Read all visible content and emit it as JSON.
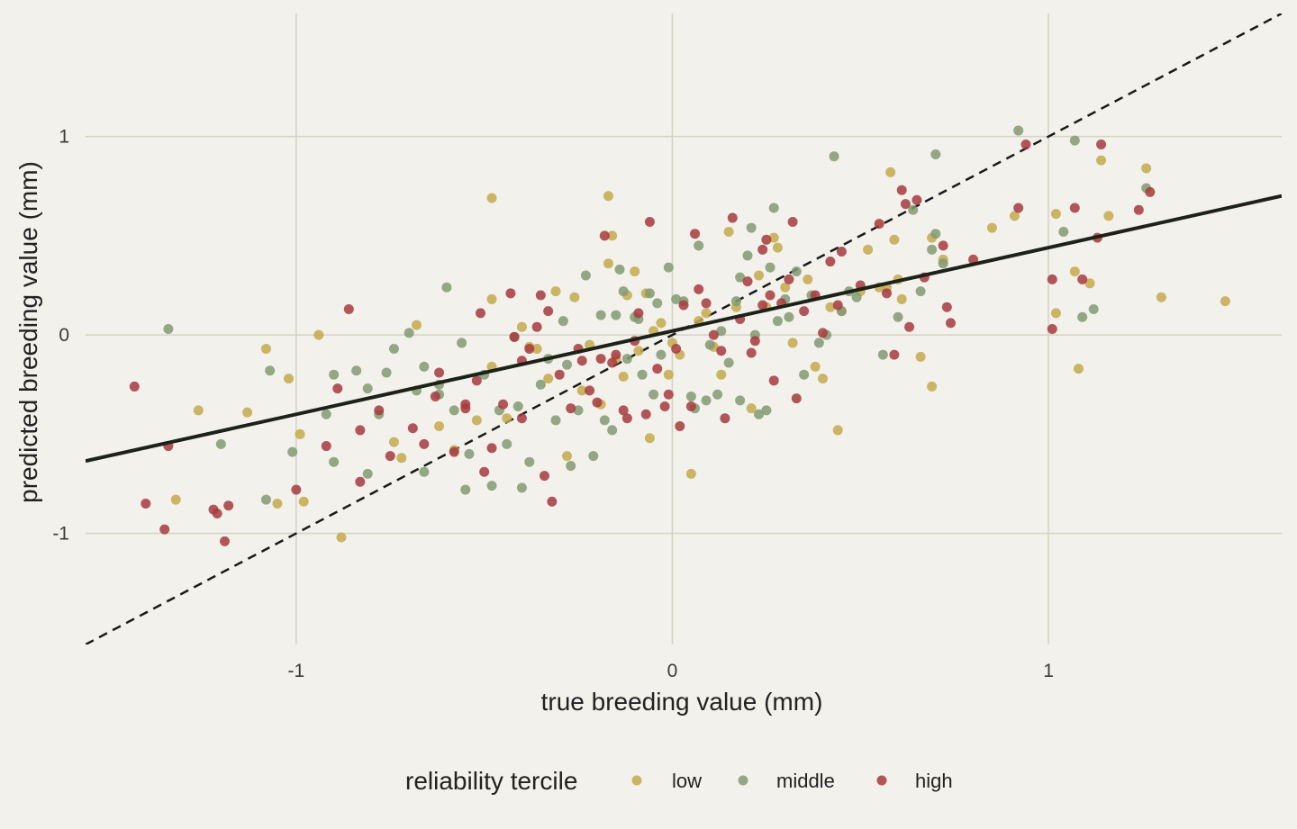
{
  "chart_data": {
    "type": "scatter",
    "xlabel": "true breeding value (mm)",
    "ylabel": "predicted breeding value (mm)",
    "xlim": [
      -1.56,
      1.62
    ],
    "ylim": [
      -1.56,
      1.62
    ],
    "x_ticks": [
      -1,
      0,
      1
    ],
    "y_ticks": [
      -1,
      0,
      1
    ],
    "x_tick_labels": [
      "-1",
      "0",
      "1"
    ],
    "y_tick_labels": [
      "-1",
      "0",
      "1"
    ],
    "grid": true,
    "legend": {
      "title": "reliability tercile",
      "position": "bottom",
      "entries": [
        {
          "label": "low",
          "color": "#c4a94c"
        },
        {
          "label": "middle",
          "color": "#839a72"
        },
        {
          "label": "high",
          "color": "#a73a3e"
        }
      ]
    },
    "reference_lines": [
      {
        "name": "",
        "kind": "identity",
        "style": "dashed",
        "color": "#1a1a1a",
        "slope": 1,
        "intercept": 0
      },
      {
        "name": "",
        "kind": "regression",
        "style": "solid",
        "color": "#1c2218",
        "slope": 0.42,
        "intercept": 0.02
      }
    ],
    "series": [
      {
        "name": "low",
        "color": "#c4a94c",
        "points": [
          [
            -1.26,
            -0.38
          ],
          [
            -1.13,
            -0.39
          ],
          [
            -1.08,
            -0.07
          ],
          [
            -1.02,
            -0.22
          ],
          [
            -0.99,
            -0.5
          ],
          [
            -1.05,
            -0.85
          ],
          [
            -0.98,
            -0.84
          ],
          [
            -0.88,
            -1.02
          ],
          [
            -0.94,
            0.0
          ],
          [
            -0.74,
            -0.54
          ],
          [
            -0.72,
            -0.62
          ],
          [
            -0.68,
            0.05
          ],
          [
            -0.62,
            -0.46
          ],
          [
            -0.58,
            -0.58
          ],
          [
            -0.52,
            -0.43
          ],
          [
            -0.48,
            0.18
          ],
          [
            -0.48,
            -0.16
          ],
          [
            -0.44,
            -0.42
          ],
          [
            -0.4,
            0.04
          ],
          [
            -0.38,
            -0.06
          ],
          [
            -0.36,
            -0.07
          ],
          [
            -0.33,
            -0.22
          ],
          [
            -0.31,
            0.22
          ],
          [
            -0.28,
            -0.61
          ],
          [
            -0.26,
            0.19
          ],
          [
            -0.24,
            -0.28
          ],
          [
            -0.22,
            -0.05
          ],
          [
            -0.19,
            -0.35
          ],
          [
            -0.17,
            0.36
          ],
          [
            -0.16,
            0.5
          ],
          [
            -0.15,
            -0.12
          ],
          [
            -0.13,
            -0.21
          ],
          [
            -0.12,
            0.2
          ],
          [
            -0.1,
            0.32
          ],
          [
            -0.09,
            -0.08
          ],
          [
            -0.07,
            0.21
          ],
          [
            -0.06,
            -0.52
          ],
          [
            -0.05,
            0.02
          ],
          [
            -0.03,
            0.06
          ],
          [
            -0.01,
            -0.2
          ],
          [
            0.0,
            -0.04
          ],
          [
            0.02,
            -0.1
          ],
          [
            0.05,
            -0.7
          ],
          [
            0.07,
            0.07
          ],
          [
            0.09,
            0.11
          ],
          [
            0.11,
            -0.06
          ],
          [
            0.13,
            -0.2
          ],
          [
            0.15,
            0.52
          ],
          [
            0.17,
            0.14
          ],
          [
            0.21,
            -0.37
          ],
          [
            0.23,
            0.3
          ],
          [
            0.25,
            0.14
          ],
          [
            0.27,
            0.49
          ],
          [
            0.28,
            0.44
          ],
          [
            0.3,
            0.24
          ],
          [
            0.32,
            -0.04
          ],
          [
            0.36,
            0.28
          ],
          [
            0.38,
            -0.16
          ],
          [
            0.4,
            -0.22
          ],
          [
            0.42,
            0.14
          ],
          [
            0.44,
            -0.48
          ],
          [
            0.45,
            0.12
          ],
          [
            0.5,
            0.22
          ],
          [
            0.52,
            0.43
          ],
          [
            0.55,
            0.24
          ],
          [
            0.57,
            0.24
          ],
          [
            0.59,
            0.48
          ],
          [
            0.6,
            0.28
          ],
          [
            0.61,
            0.18
          ],
          [
            0.66,
            -0.11
          ],
          [
            0.69,
            -0.26
          ],
          [
            0.69,
            0.49
          ],
          [
            0.72,
            0.38
          ],
          [
            0.85,
            0.54
          ],
          [
            0.91,
            0.6
          ],
          [
            1.02,
            0.61
          ],
          [
            1.02,
            0.11
          ],
          [
            1.07,
            0.32
          ],
          [
            1.08,
            -0.17
          ],
          [
            1.11,
            0.26
          ],
          [
            1.14,
            0.88
          ],
          [
            1.16,
            0.6
          ],
          [
            1.26,
            0.84
          ],
          [
            1.3,
            0.19
          ],
          [
            1.47,
            0.17
          ],
          [
            -0.48,
            0.69
          ],
          [
            -0.17,
            0.7
          ],
          [
            0.58,
            0.82
          ],
          [
            -1.32,
            -0.83
          ]
        ]
      },
      {
        "name": "middle",
        "color": "#839a72",
        "points": [
          [
            -1.34,
            0.03
          ],
          [
            -1.2,
            -0.55
          ],
          [
            -1.07,
            -0.18
          ],
          [
            -1.08,
            -0.83
          ],
          [
            -1.01,
            -0.59
          ],
          [
            -0.92,
            -0.4
          ],
          [
            -0.9,
            -0.2
          ],
          [
            -0.9,
            -0.64
          ],
          [
            -0.84,
            -0.18
          ],
          [
            -0.81,
            -0.27
          ],
          [
            -0.81,
            -0.7
          ],
          [
            -0.78,
            -0.4
          ],
          [
            -0.76,
            -0.19
          ],
          [
            -0.74,
            -0.07
          ],
          [
            -0.7,
            0.01
          ],
          [
            -0.68,
            -0.28
          ],
          [
            -0.66,
            -0.69
          ],
          [
            -0.62,
            -0.25
          ],
          [
            -0.62,
            -0.3
          ],
          [
            -0.6,
            0.24
          ],
          [
            -0.58,
            -0.38
          ],
          [
            -0.56,
            -0.04
          ],
          [
            -0.55,
            -0.78
          ],
          [
            -0.54,
            -0.6
          ],
          [
            -0.5,
            -0.2
          ],
          [
            -0.48,
            -0.76
          ],
          [
            -0.46,
            -0.38
          ],
          [
            -0.44,
            -0.55
          ],
          [
            -0.42,
            -0.01
          ],
          [
            -0.4,
            -0.77
          ],
          [
            -0.38,
            -0.64
          ],
          [
            -0.35,
            -0.25
          ],
          [
            -0.33,
            -0.12
          ],
          [
            -0.31,
            -0.43
          ],
          [
            -0.28,
            -0.15
          ],
          [
            -0.27,
            -0.66
          ],
          [
            -0.25,
            -0.38
          ],
          [
            -0.23,
            0.3
          ],
          [
            -0.21,
            -0.61
          ],
          [
            -0.19,
            0.1
          ],
          [
            -0.18,
            -0.43
          ],
          [
            -0.16,
            -0.48
          ],
          [
            -0.15,
            0.1
          ],
          [
            -0.14,
            0.33
          ],
          [
            -0.13,
            0.22
          ],
          [
            -0.12,
            -0.12
          ],
          [
            -0.1,
            0.09
          ],
          [
            -0.09,
            0.08
          ],
          [
            -0.08,
            -0.2
          ],
          [
            -0.06,
            0.21
          ],
          [
            -0.05,
            -0.3
          ],
          [
            -0.04,
            0.16
          ],
          [
            -0.03,
            -0.1
          ],
          [
            -0.01,
            0.34
          ],
          [
            0.01,
            0.18
          ],
          [
            0.03,
            0.17
          ],
          [
            0.05,
            -0.31
          ],
          [
            0.06,
            -0.37
          ],
          [
            0.07,
            0.45
          ],
          [
            0.09,
            -0.33
          ],
          [
            0.1,
            -0.05
          ],
          [
            0.12,
            -0.3
          ],
          [
            0.13,
            0.02
          ],
          [
            0.15,
            -0.14
          ],
          [
            0.17,
            0.17
          ],
          [
            0.18,
            0.29
          ],
          [
            0.2,
            0.4
          ],
          [
            0.21,
            0.54
          ],
          [
            0.22,
            0.0
          ],
          [
            0.23,
            -0.4
          ],
          [
            0.25,
            -0.38
          ],
          [
            0.26,
            0.34
          ],
          [
            0.27,
            0.64
          ],
          [
            0.28,
            0.07
          ],
          [
            0.3,
            0.18
          ],
          [
            0.31,
            0.09
          ],
          [
            0.33,
            0.32
          ],
          [
            0.35,
            -0.2
          ],
          [
            0.37,
            0.2
          ],
          [
            0.39,
            -0.04
          ],
          [
            0.41,
            0.0
          ],
          [
            0.43,
            0.9
          ],
          [
            0.45,
            0.12
          ],
          [
            0.47,
            0.22
          ],
          [
            0.49,
            0.19
          ],
          [
            0.56,
            -0.1
          ],
          [
            0.6,
            0.09
          ],
          [
            0.64,
            0.63
          ],
          [
            0.66,
            0.22
          ],
          [
            0.69,
            0.43
          ],
          [
            0.7,
            0.51
          ],
          [
            0.72,
            0.36
          ],
          [
            0.7,
            0.91
          ],
          [
            0.92,
            1.03
          ],
          [
            1.04,
            0.52
          ],
          [
            1.07,
            0.98
          ],
          [
            1.09,
            0.09
          ],
          [
            1.12,
            0.13
          ],
          [
            1.26,
            0.74
          ],
          [
            -0.41,
            -0.36
          ],
          [
            -0.29,
            0.07
          ],
          [
            0.18,
            -0.33
          ],
          [
            -0.66,
            -0.16
          ]
        ]
      },
      {
        "name": "high",
        "color": "#a73a3e",
        "points": [
          [
            -1.43,
            -0.26
          ],
          [
            -1.4,
            -0.85
          ],
          [
            -1.35,
            -0.98
          ],
          [
            -1.34,
            -0.56
          ],
          [
            -1.22,
            -0.88
          ],
          [
            -1.21,
            -0.9
          ],
          [
            -1.19,
            -1.04
          ],
          [
            -1.18,
            -0.86
          ],
          [
            -1.0,
            -0.78
          ],
          [
            -0.92,
            -0.56
          ],
          [
            -0.89,
            -0.27
          ],
          [
            -0.86,
            0.13
          ],
          [
            -0.83,
            -0.74
          ],
          [
            -0.83,
            -0.48
          ],
          [
            -0.78,
            -0.38
          ],
          [
            -0.75,
            -0.61
          ],
          [
            -0.69,
            -0.47
          ],
          [
            -0.66,
            -0.55
          ],
          [
            -0.63,
            -0.31
          ],
          [
            -0.62,
            -0.19
          ],
          [
            -0.58,
            -0.59
          ],
          [
            -0.55,
            -0.35
          ],
          [
            -0.52,
            -0.23
          ],
          [
            -0.51,
            0.11
          ],
          [
            -0.5,
            -0.69
          ],
          [
            -0.48,
            -0.57
          ],
          [
            -0.45,
            -0.35
          ],
          [
            -0.43,
            0.21
          ],
          [
            -0.42,
            -0.01
          ],
          [
            -0.4,
            -0.13
          ],
          [
            -0.4,
            -0.42
          ],
          [
            -0.38,
            -0.07
          ],
          [
            -0.36,
            0.04
          ],
          [
            -0.35,
            0.2
          ],
          [
            -0.34,
            -0.71
          ],
          [
            -0.33,
            0.12
          ],
          [
            -0.32,
            -0.84
          ],
          [
            -0.3,
            -0.2
          ],
          [
            -0.27,
            -0.37
          ],
          [
            -0.25,
            -0.07
          ],
          [
            -0.24,
            -0.13
          ],
          [
            -0.22,
            -0.28
          ],
          [
            -0.2,
            -0.34
          ],
          [
            -0.19,
            -0.12
          ],
          [
            -0.18,
            0.5
          ],
          [
            -0.16,
            -0.14
          ],
          [
            -0.15,
            -0.1
          ],
          [
            -0.13,
            -0.38
          ],
          [
            -0.12,
            -0.42
          ],
          [
            -0.1,
            -0.03
          ],
          [
            -0.09,
            0.11
          ],
          [
            -0.07,
            -0.4
          ],
          [
            -0.06,
            0.57
          ],
          [
            -0.04,
            -0.17
          ],
          [
            -0.02,
            -0.36
          ],
          [
            -0.01,
            -0.3
          ],
          [
            0.01,
            -0.07
          ],
          [
            0.02,
            -0.46
          ],
          [
            0.03,
            0.15
          ],
          [
            0.05,
            -0.36
          ],
          [
            0.06,
            0.51
          ],
          [
            0.07,
            0.23
          ],
          [
            0.09,
            0.16
          ],
          [
            0.11,
            0.0
          ],
          [
            0.13,
            -0.08
          ],
          [
            0.14,
            -0.42
          ],
          [
            0.16,
            0.59
          ],
          [
            0.18,
            0.08
          ],
          [
            0.2,
            0.27
          ],
          [
            0.21,
            -0.09
          ],
          [
            0.22,
            -0.03
          ],
          [
            0.24,
            0.43
          ],
          [
            0.25,
            0.48
          ],
          [
            0.26,
            0.2
          ],
          [
            0.27,
            -0.23
          ],
          [
            0.29,
            0.16
          ],
          [
            0.31,
            0.28
          ],
          [
            0.32,
            0.57
          ],
          [
            0.33,
            -0.32
          ],
          [
            0.35,
            0.12
          ],
          [
            0.38,
            0.2
          ],
          [
            0.4,
            0.01
          ],
          [
            0.42,
            0.37
          ],
          [
            0.44,
            0.15
          ],
          [
            0.45,
            0.42
          ],
          [
            0.5,
            0.25
          ],
          [
            0.55,
            0.56
          ],
          [
            0.57,
            0.21
          ],
          [
            0.59,
            -0.1
          ],
          [
            0.61,
            0.73
          ],
          [
            0.62,
            0.66
          ],
          [
            0.63,
            0.04
          ],
          [
            0.65,
            0.68
          ],
          [
            0.67,
            0.29
          ],
          [
            0.72,
            0.45
          ],
          [
            0.73,
            0.14
          ],
          [
            0.74,
            0.06
          ],
          [
            0.8,
            0.38
          ],
          [
            0.92,
            0.64
          ],
          [
            0.94,
            0.96
          ],
          [
            1.01,
            0.28
          ],
          [
            1.01,
            0.03
          ],
          [
            1.07,
            0.64
          ],
          [
            1.09,
            0.28
          ],
          [
            1.13,
            0.49
          ],
          [
            1.14,
            0.96
          ],
          [
            1.24,
            0.63
          ],
          [
            1.27,
            0.72
          ],
          [
            -0.55,
            -0.37
          ],
          [
            0.24,
            0.15
          ]
        ]
      }
    ]
  }
}
